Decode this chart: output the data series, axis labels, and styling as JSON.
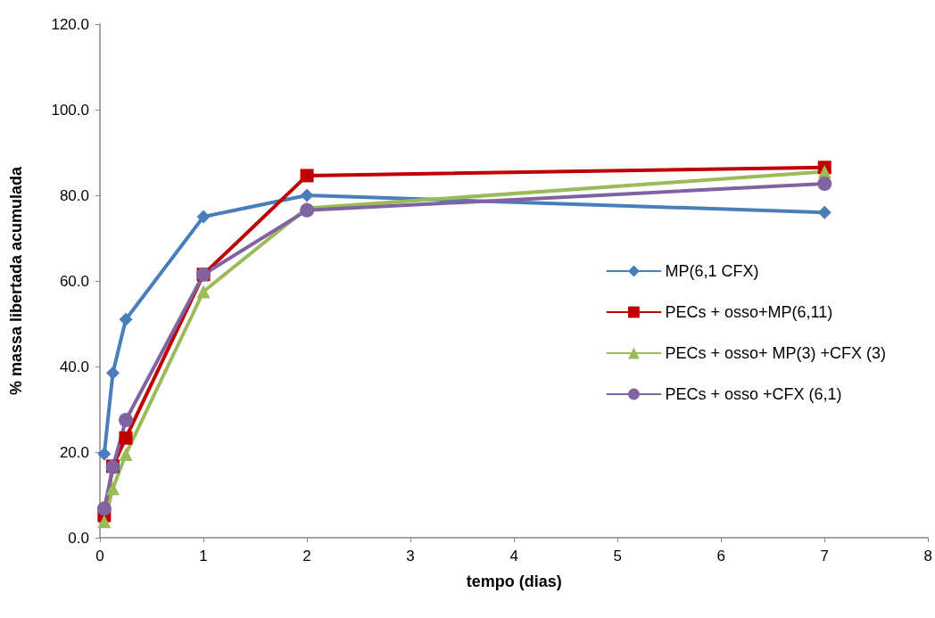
{
  "chart_data": {
    "type": "line",
    "xlabel": "tempo (dias)",
    "ylabel": "% massa libertada acumulada",
    "xlim": [
      0,
      8
    ],
    "xticks": [
      0,
      1,
      2,
      3,
      4,
      5,
      6,
      7,
      8
    ],
    "ylim": [
      0,
      120
    ],
    "yticks": [
      {
        "value": 0,
        "label": "0.0"
      },
      {
        "value": 20,
        "label": "20.0"
      },
      {
        "value": 40,
        "label": "40.0"
      },
      {
        "value": 60,
        "label": "60.0"
      },
      {
        "value": 80,
        "label": "80.0"
      },
      {
        "value": 100,
        "label": "100.0"
      },
      {
        "value": 120,
        "label": "120.0"
      }
    ],
    "x": [
      0.042,
      0.125,
      0.25,
      1,
      2,
      7
    ],
    "grid": false,
    "legend": "right",
    "series": [
      {
        "name": "MP(6,1 CFX)",
        "color": "#4a7ebb",
        "marker": "diamond",
        "values": [
          19.6,
          38.5,
          51,
          75,
          80,
          76
        ]
      },
      {
        "name": "PECs + osso+MP(6,11)",
        "color": "#c00000",
        "marker": "square",
        "values": [
          5.2,
          16.7,
          23.3,
          61.5,
          84.6,
          86.5
        ]
      },
      {
        "name": "PECs + osso+ MP(3) +CFX (3)",
        "color": "#9bbb59",
        "marker": "triangle",
        "values": [
          3.8,
          11.5,
          19.5,
          57.5,
          77,
          85.5
        ]
      },
      {
        "name": "PECs + osso +CFX (6,1)",
        "color": "#8064a2",
        "marker": "circle",
        "values": [
          6.8,
          16.5,
          27.5,
          61.5,
          76.5,
          82.7
        ]
      }
    ]
  }
}
